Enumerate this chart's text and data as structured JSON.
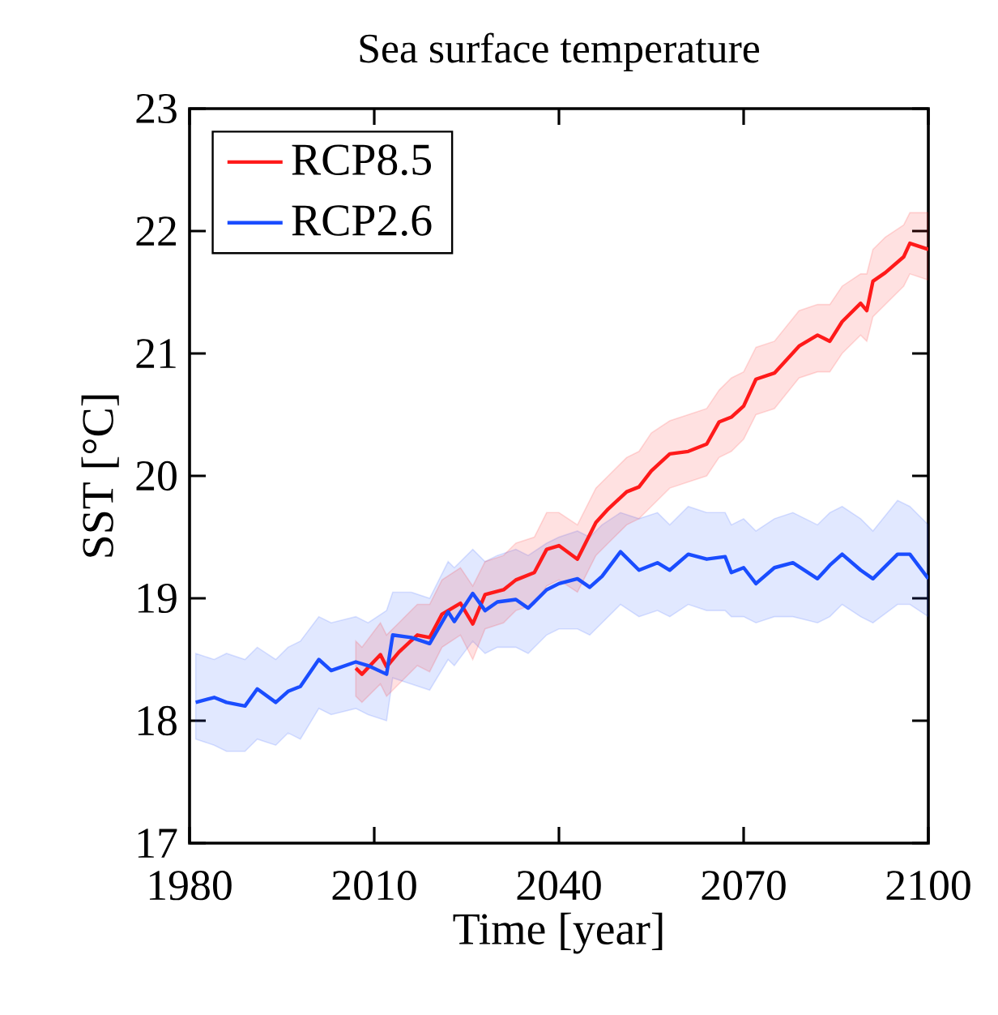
{
  "chart_data": {
    "type": "line",
    "title": "Sea surface temperature",
    "xlabel": "Time [year]",
    "ylabel": "SST [°C]",
    "xlim": [
      1980,
      2100
    ],
    "ylim": [
      17,
      23
    ],
    "xticks": [
      1980,
      2010,
      2040,
      2070,
      2100
    ],
    "yticks": [
      17,
      18,
      19,
      20,
      21,
      22,
      23
    ],
    "legend": "top left",
    "series": [
      {
        "name": "RCP8.5",
        "color": "#ff1a1a",
        "x": [
          2007,
          2008,
          2011,
          2012,
          2014,
          2017,
          2019,
          2021,
          2024,
          2026,
          2028,
          2031,
          2033,
          2036,
          2038,
          2040,
          2043,
          2046,
          2048,
          2051,
          2053,
          2055,
          2058,
          2061,
          2064,
          2066,
          2068,
          2070,
          2072,
          2075,
          2079,
          2082,
          2084,
          2086,
          2089,
          2090,
          2091,
          2093,
          2096,
          2097,
          2100
        ],
        "values": [
          18.43,
          18.38,
          18.54,
          18.44,
          18.56,
          18.7,
          18.68,
          18.87,
          18.96,
          18.79,
          19.03,
          19.07,
          19.15,
          19.21,
          19.4,
          19.43,
          19.32,
          19.62,
          19.73,
          19.87,
          19.91,
          20.04,
          20.18,
          20.2,
          20.26,
          20.44,
          20.48,
          20.57,
          20.79,
          20.84,
          21.06,
          21.15,
          21.1,
          21.26,
          21.41,
          21.35,
          21.59,
          21.66,
          21.79,
          21.9,
          21.85
        ],
        "lower": [
          18.2,
          18.15,
          18.3,
          18.2,
          18.3,
          18.45,
          18.4,
          18.6,
          18.7,
          18.5,
          18.75,
          18.8,
          18.9,
          18.95,
          19.1,
          19.15,
          19.05,
          19.35,
          19.45,
          19.6,
          19.65,
          19.75,
          19.9,
          19.95,
          20.0,
          20.15,
          20.2,
          20.3,
          20.5,
          20.55,
          20.8,
          20.85,
          20.85,
          21.0,
          21.15,
          21.1,
          21.3,
          21.4,
          21.55,
          21.65,
          21.6
        ],
        "upper": [
          18.65,
          18.6,
          18.8,
          18.7,
          18.8,
          18.95,
          18.95,
          19.15,
          19.25,
          19.1,
          19.3,
          19.35,
          19.45,
          19.5,
          19.7,
          19.7,
          19.6,
          19.9,
          20.0,
          20.15,
          20.2,
          20.35,
          20.45,
          20.5,
          20.55,
          20.7,
          20.8,
          20.85,
          21.05,
          21.1,
          21.35,
          21.4,
          21.4,
          21.55,
          21.65,
          21.65,
          21.85,
          21.95,
          22.05,
          22.15,
          22.15
        ]
      },
      {
        "name": "RCP2.6",
        "color": "#1a4dff",
        "x": [
          1981,
          1984,
          1986,
          1989,
          1991,
          1994,
          1996,
          1998,
          2001,
          2003,
          2007,
          2009,
          2012,
          2013,
          2016,
          2019,
          2022,
          2023,
          2026,
          2028,
          2030,
          2033,
          2035,
          2038,
          2040,
          2043,
          2045,
          2047,
          2050,
          2053,
          2056,
          2058,
          2061,
          2064,
          2067,
          2068,
          2070,
          2072,
          2075,
          2078,
          2082,
          2084,
          2086,
          2089,
          2091,
          2095,
          2097,
          2100
        ],
        "values": [
          18.15,
          18.19,
          18.15,
          18.12,
          18.26,
          18.15,
          18.24,
          18.28,
          18.5,
          18.41,
          18.48,
          18.45,
          18.38,
          18.7,
          18.68,
          18.63,
          18.89,
          18.81,
          19.04,
          18.9,
          18.97,
          18.99,
          18.92,
          19.07,
          19.12,
          19.16,
          19.09,
          19.18,
          19.38,
          19.23,
          19.29,
          19.23,
          19.36,
          19.32,
          19.34,
          19.21,
          19.25,
          19.12,
          19.25,
          19.29,
          19.16,
          19.27,
          19.36,
          19.23,
          19.16,
          19.36,
          19.36,
          19.16
        ],
        "lower": [
          17.85,
          17.8,
          17.75,
          17.75,
          17.85,
          17.8,
          17.9,
          17.85,
          18.1,
          18.05,
          18.1,
          18.05,
          18.0,
          18.35,
          18.3,
          18.25,
          18.5,
          18.45,
          18.65,
          18.55,
          18.6,
          18.6,
          18.55,
          18.7,
          18.75,
          18.75,
          18.7,
          18.8,
          18.95,
          18.85,
          18.9,
          18.85,
          18.95,
          18.9,
          18.9,
          18.85,
          18.85,
          18.8,
          18.85,
          18.85,
          18.8,
          18.85,
          18.95,
          18.85,
          18.8,
          18.95,
          18.95,
          18.85
        ],
        "upper": [
          18.55,
          18.5,
          18.55,
          18.5,
          18.6,
          18.5,
          18.6,
          18.65,
          18.85,
          18.8,
          18.85,
          18.8,
          18.9,
          19.05,
          19.05,
          19.0,
          19.3,
          19.25,
          19.4,
          19.3,
          19.35,
          19.4,
          19.35,
          19.45,
          19.5,
          19.55,
          19.5,
          19.6,
          19.7,
          19.65,
          19.7,
          19.6,
          19.75,
          19.7,
          19.7,
          19.6,
          19.65,
          19.55,
          19.65,
          19.7,
          19.6,
          19.7,
          19.75,
          19.65,
          19.55,
          19.8,
          19.75,
          19.6
        ]
      }
    ]
  }
}
